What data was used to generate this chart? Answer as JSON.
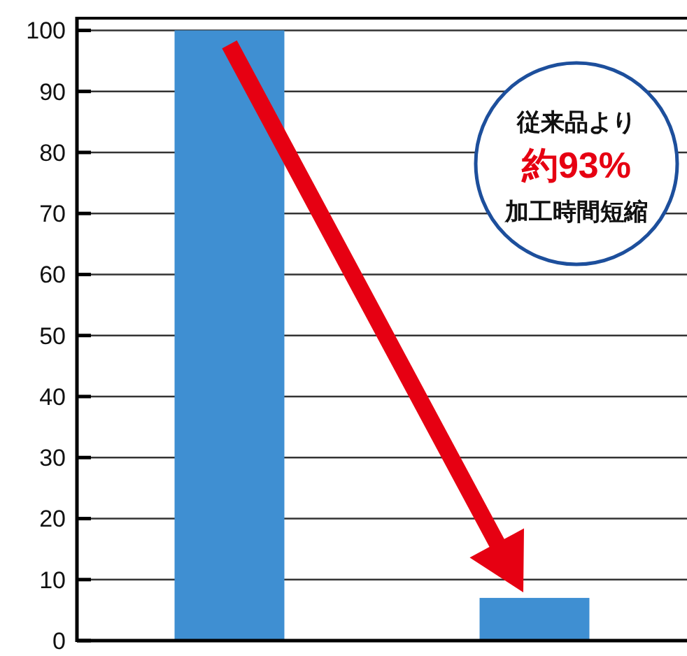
{
  "chart_data": {
    "type": "bar",
    "categories": [
      null,
      null
    ],
    "series": [
      {
        "color": "#3f8fd2",
        "values": [
          100,
          7
        ]
      }
    ],
    "ylim": [
      0,
      102
    ],
    "yticks": [
      0,
      10,
      20,
      30,
      40,
      50,
      60,
      70,
      80,
      90,
      100
    ],
    "grid": "y",
    "annotations": [
      "従来品より",
      "約93%",
      "加工時間短縮"
    ]
  }
}
